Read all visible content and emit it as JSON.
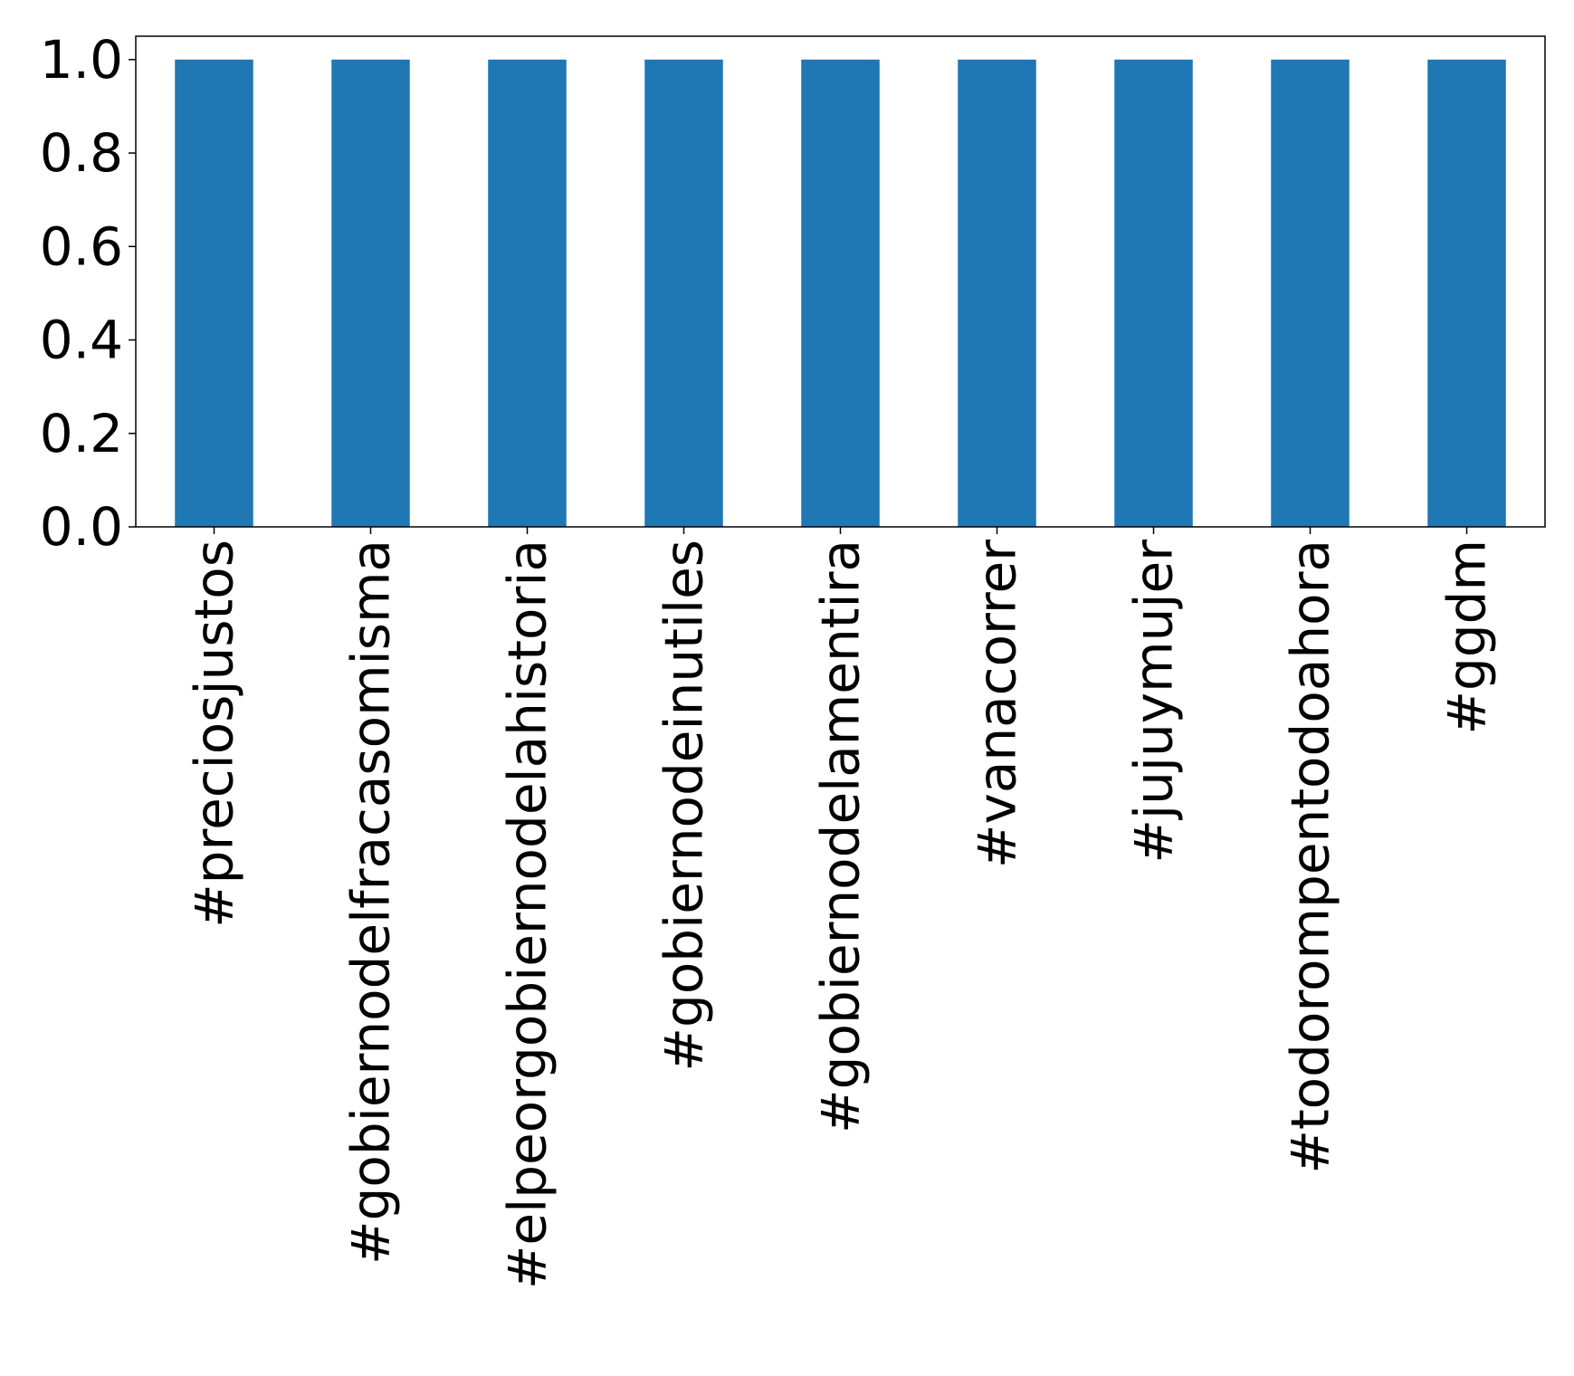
{
  "chart_data": {
    "type": "bar",
    "title": "",
    "xlabel": "",
    "ylabel": "",
    "categories": [
      "#preciosjustos",
      "#gobiernodelfracasomisma",
      "#elpeorgobiernodelahistoria",
      "#gobiernodeinutiles",
      "#gobiernodelamentira",
      "#vanacorrer",
      "#jujuymujer",
      "#todorompentodoahora",
      "#ggdm"
    ],
    "values": [
      1.0,
      1.0,
      1.0,
      1.0,
      1.0,
      1.0,
      1.0,
      1.0,
      1.0
    ],
    "ylim": [
      0.0,
      1.05
    ],
    "yticks": [
      "0.0",
      "0.2",
      "0.4",
      "0.6",
      "0.8",
      "1.0"
    ],
    "grid": false,
    "legend": "none",
    "bar_color": "#1f77b4"
  }
}
